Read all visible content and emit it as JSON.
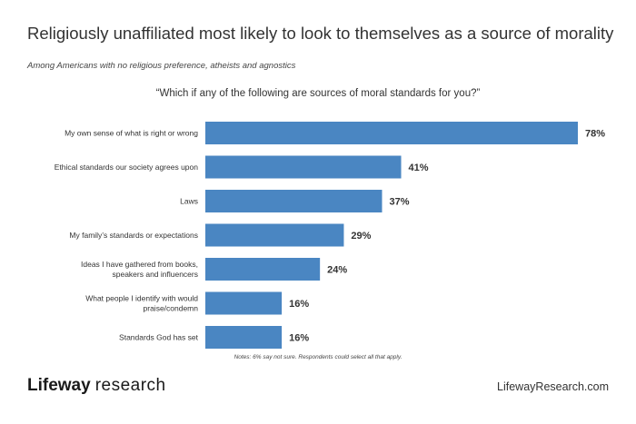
{
  "header": {
    "title": "Religiously unaffiliated most likely to look to themselves as a source of morality",
    "subtitle": "Among Americans with no religious preference, atheists and agnostics",
    "question": "“Which if any of the following are sources of moral standards for you?”"
  },
  "chart_data": {
    "type": "bar",
    "orientation": "horizontal",
    "title": "Religiously unaffiliated most likely to look to themselves as a source of morality",
    "subtitle": "Among Americans with no religious preference, atheists and agnostics",
    "categories": [
      [
        "My own sense of what is right or wrong"
      ],
      [
        "Ethical standards our society agrees upon"
      ],
      [
        "Laws"
      ],
      [
        "My family’s standards or expectations"
      ],
      [
        "Ideas I have gathered from books,",
        "speakers and influencers"
      ],
      [
        "What people I identify with would",
        "praise/condemn"
      ],
      [
        "Standards God has set"
      ]
    ],
    "values": [
      78,
      41,
      37,
      29,
      24,
      16,
      16
    ],
    "value_labels": [
      "78%",
      "41%",
      "37%",
      "29%",
      "24%",
      "16%",
      "16%"
    ],
    "xlim": [
      0,
      78
    ],
    "bar_color": "#4A86C2",
    "grid": false
  },
  "footer": {
    "note": "Notes: 6% say not sure. Respondents could select all that apply.",
    "logo_strong": "Lifeway",
    "logo_light": "research",
    "website": "LifewayResearch.com"
  }
}
